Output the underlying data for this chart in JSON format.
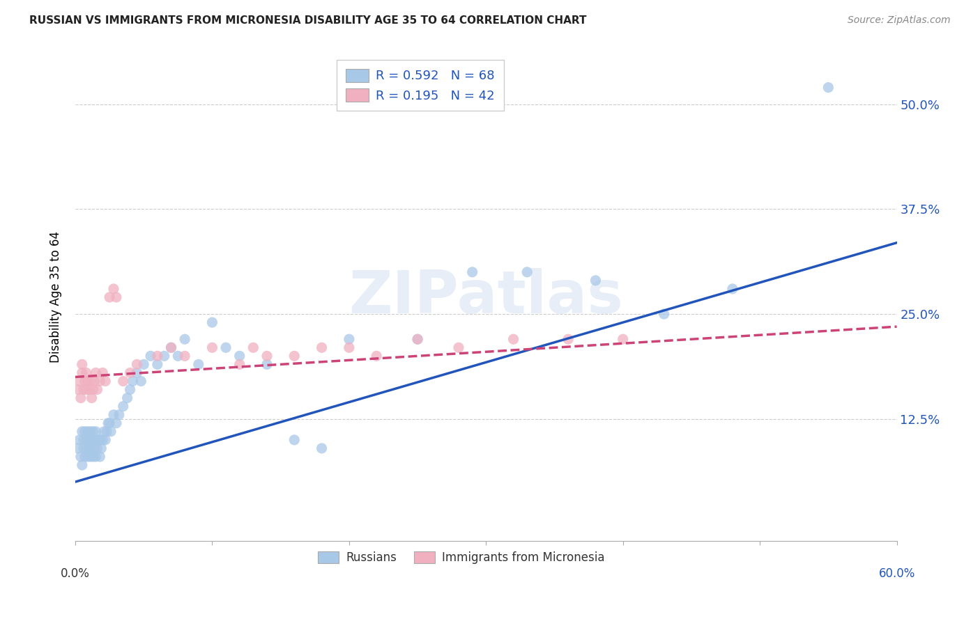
{
  "title": "RUSSIAN VS IMMIGRANTS FROM MICRONESIA DISABILITY AGE 35 TO 64 CORRELATION CHART",
  "source": "Source: ZipAtlas.com",
  "ylabel": "Disability Age 35 to 64",
  "xlim": [
    0.0,
    0.6
  ],
  "ylim": [
    -0.02,
    0.56
  ],
  "yticks": [
    0.0,
    0.125,
    0.25,
    0.375,
    0.5
  ],
  "ytick_labels": [
    "",
    "12.5%",
    "25.0%",
    "37.5%",
    "50.0%"
  ],
  "russian_color": "#a8c8e8",
  "micronesia_color": "#f0b0c0",
  "russian_line_color": "#2255bb",
  "micronesia_line_color": "#cc4477",
  "legend_r_russian": "R = 0.592",
  "legend_n_russian": "N = 68",
  "legend_r_micronesia": "R = 0.195",
  "legend_n_micronesia": "N = 42",
  "watermark": "ZIPatlas",
  "russian_scatter_x": [
    0.002,
    0.003,
    0.004,
    0.005,
    0.005,
    0.006,
    0.006,
    0.007,
    0.007,
    0.008,
    0.008,
    0.009,
    0.009,
    0.01,
    0.01,
    0.011,
    0.011,
    0.012,
    0.012,
    0.013,
    0.013,
    0.014,
    0.014,
    0.015,
    0.015,
    0.016,
    0.017,
    0.018,
    0.018,
    0.019,
    0.02,
    0.021,
    0.022,
    0.023,
    0.024,
    0.025,
    0.026,
    0.028,
    0.03,
    0.032,
    0.035,
    0.038,
    0.04,
    0.042,
    0.045,
    0.048,
    0.05,
    0.055,
    0.06,
    0.065,
    0.07,
    0.075,
    0.08,
    0.09,
    0.1,
    0.11,
    0.12,
    0.14,
    0.16,
    0.18,
    0.2,
    0.25,
    0.29,
    0.33,
    0.38,
    0.43,
    0.48,
    0.55
  ],
  "russian_scatter_y": [
    0.09,
    0.1,
    0.08,
    0.07,
    0.11,
    0.09,
    0.1,
    0.08,
    0.11,
    0.09,
    0.1,
    0.08,
    0.11,
    0.1,
    0.09,
    0.08,
    0.11,
    0.09,
    0.1,
    0.08,
    0.11,
    0.1,
    0.09,
    0.08,
    0.11,
    0.09,
    0.1,
    0.08,
    0.1,
    0.09,
    0.1,
    0.11,
    0.1,
    0.11,
    0.12,
    0.12,
    0.11,
    0.13,
    0.12,
    0.13,
    0.14,
    0.15,
    0.16,
    0.17,
    0.18,
    0.17,
    0.19,
    0.2,
    0.19,
    0.2,
    0.21,
    0.2,
    0.22,
    0.19,
    0.24,
    0.21,
    0.2,
    0.19,
    0.1,
    0.09,
    0.22,
    0.22,
    0.3,
    0.3,
    0.29,
    0.25,
    0.28,
    0.52
  ],
  "micronesia_scatter_x": [
    0.002,
    0.003,
    0.004,
    0.005,
    0.005,
    0.006,
    0.007,
    0.008,
    0.008,
    0.009,
    0.01,
    0.011,
    0.012,
    0.013,
    0.014,
    0.015,
    0.016,
    0.018,
    0.02,
    0.022,
    0.025,
    0.028,
    0.03,
    0.035,
    0.04,
    0.045,
    0.06,
    0.07,
    0.08,
    0.1,
    0.12,
    0.13,
    0.14,
    0.16,
    0.18,
    0.2,
    0.22,
    0.25,
    0.28,
    0.32,
    0.36,
    0.4
  ],
  "micronesia_scatter_y": [
    0.16,
    0.17,
    0.15,
    0.18,
    0.19,
    0.16,
    0.17,
    0.16,
    0.18,
    0.17,
    0.16,
    0.17,
    0.15,
    0.16,
    0.17,
    0.18,
    0.16,
    0.17,
    0.18,
    0.17,
    0.27,
    0.28,
    0.27,
    0.17,
    0.18,
    0.19,
    0.2,
    0.21,
    0.2,
    0.21,
    0.19,
    0.21,
    0.2,
    0.2,
    0.21,
    0.21,
    0.2,
    0.22,
    0.21,
    0.22,
    0.22,
    0.22
  ],
  "russian_line_x0": 0.0,
  "russian_line_y0": 0.05,
  "russian_line_x1": 0.6,
  "russian_line_y1": 0.335,
  "micronesia_line_x0": 0.0,
  "micronesia_line_y0": 0.175,
  "micronesia_line_x1": 0.6,
  "micronesia_line_y1": 0.235
}
